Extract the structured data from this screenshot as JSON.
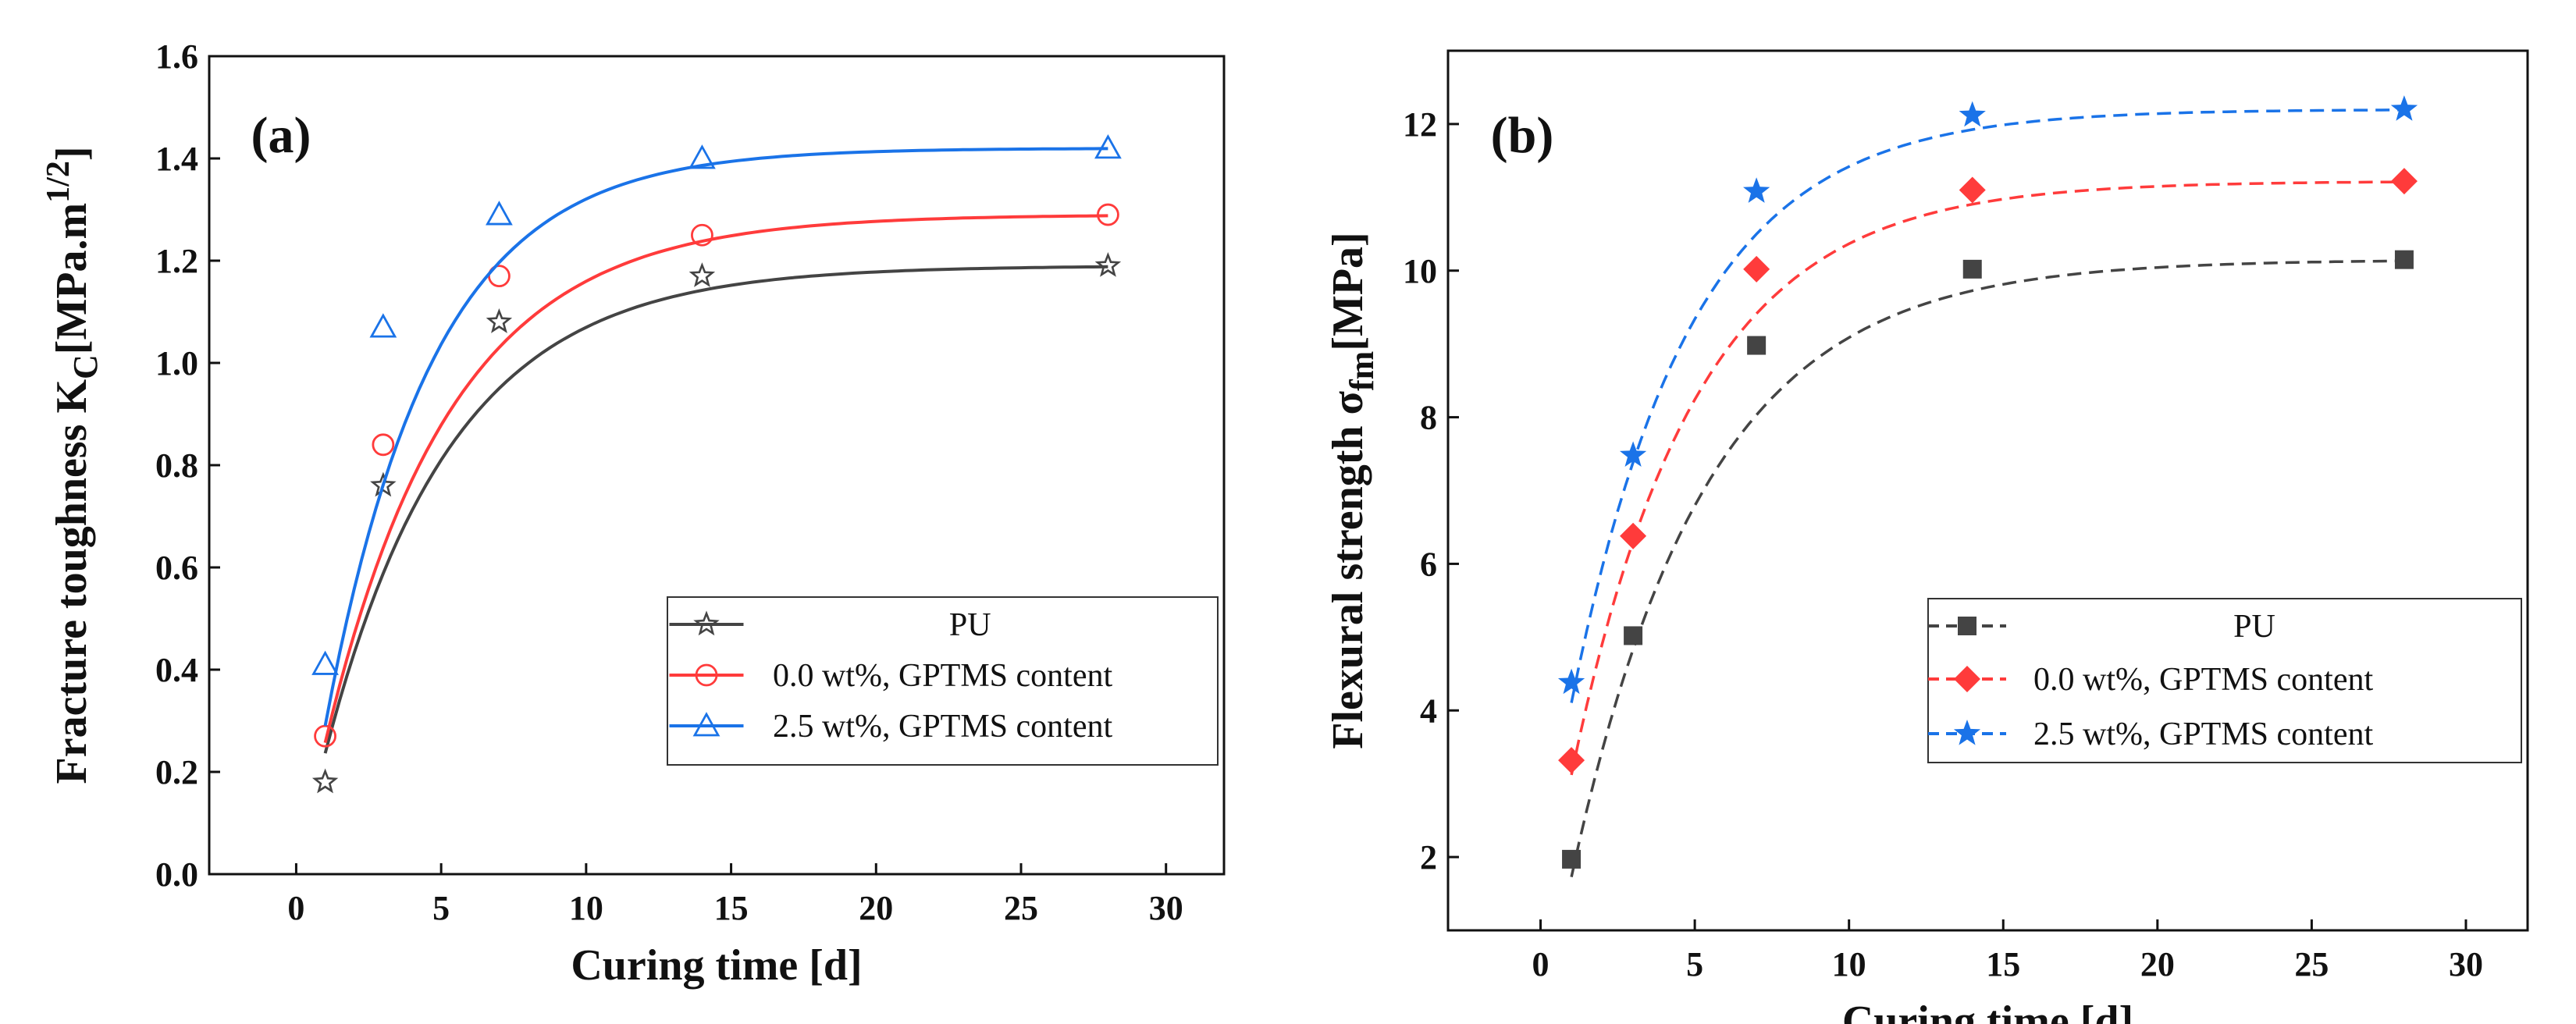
{
  "colors": {
    "black": "#444444",
    "red": "#ff3b3b",
    "blue": "#1a73e8",
    "axis": "#111111"
  },
  "chart_data": [
    {
      "type": "scatter",
      "panel_label": "(a)",
      "xlabel": "Curing time [d]",
      "ylabel_main": "Fracture toughness K",
      "ylabel_sub": "C",
      "ylabel_rest": "[MPa.m",
      "ylabel_sup": "1/2",
      "ylabel_end": "]",
      "xlim": [
        -3,
        32
      ],
      "ylim": [
        0,
        1.6
      ],
      "xticks": [
        0,
        5,
        10,
        15,
        20,
        25,
        30
      ],
      "yticks": [
        0.0,
        0.2,
        0.4,
        0.6,
        0.8,
        1.0,
        1.2,
        1.4,
        1.6
      ],
      "ytick_labels": [
        "0.0",
        "0.2",
        "0.4",
        "0.6",
        "0.8",
        "1.0",
        "1.2",
        "1.4",
        "1.6"
      ],
      "grid": false,
      "legend_position": "lower-right",
      "fit_style": "solid",
      "series": [
        {
          "name": "PU",
          "marker": "star-open",
          "color": "#444444",
          "x": [
            1,
            3,
            7,
            14,
            28
          ],
          "y": [
            0.18,
            0.76,
            1.08,
            1.17,
            1.19
          ],
          "fit": {
            "a": 1.19,
            "b": 1.2,
            "k": 0.23
          }
        },
        {
          "name": "0.0 wt%, GPTMS content",
          "marker": "circle-open",
          "color": "#ff3b3b",
          "x": [
            1,
            3,
            7,
            14,
            28
          ],
          "y": [
            0.27,
            0.84,
            1.17,
            1.25,
            1.29
          ],
          "fit": {
            "a": 1.29,
            "b": 1.3,
            "k": 0.23
          }
        },
        {
          "name": "2.5 wt%, GPTMS content",
          "marker": "triangle-open",
          "color": "#1a73e8",
          "x": [
            1,
            3,
            7,
            14,
            28
          ],
          "y": [
            0.41,
            1.07,
            1.29,
            1.4,
            1.42
          ],
          "fit": {
            "a": 1.42,
            "b": 1.48,
            "k": 0.27
          }
        }
      ]
    },
    {
      "type": "scatter",
      "panel_label": "(b)",
      "xlabel": "Curing time [d]",
      "ylabel_main": "Flexural strength σ",
      "ylabel_sub": "fm",
      "ylabel_rest": "[MPa]",
      "ylabel_sup": "",
      "ylabel_end": "",
      "xlim": [
        -3,
        32
      ],
      "ylim": [
        1,
        13
      ],
      "xticks": [
        0,
        5,
        10,
        15,
        20,
        25,
        30
      ],
      "yticks": [
        2,
        4,
        6,
        8,
        10,
        12
      ],
      "ytick_labels": [
        "2",
        "4",
        "6",
        "8",
        "10",
        "12"
      ],
      "grid": false,
      "legend_position": "lower-right",
      "fit_style": "dashed",
      "series": [
        {
          "name": "PU",
          "marker": "square-filled",
          "color": "#444444",
          "x": [
            1,
            3,
            7,
            14,
            28
          ],
          "y": [
            1.97,
            5.02,
            8.98,
            10.02,
            10.15
          ],
          "fit": {
            "a": 10.15,
            "b": 10.6,
            "k": 0.23
          }
        },
        {
          "name": "0.0 wt%, GPTMS content",
          "marker": "diamond-filled",
          "color": "#ff3b3b",
          "x": [
            1,
            3,
            7,
            14,
            28
          ],
          "y": [
            3.32,
            6.38,
            10.02,
            11.1,
            11.22
          ],
          "fit": {
            "a": 11.22,
            "b": 10.4,
            "k": 0.25
          }
        },
        {
          "name": "2.5 wt%, GPTMS content",
          "marker": "star-filled",
          "color": "#1a73e8",
          "x": [
            1,
            3,
            7,
            14,
            28
          ],
          "y": [
            4.38,
            7.48,
            11.08,
            12.12,
            12.2
          ],
          "fit": {
            "a": 12.2,
            "b": 10.5,
            "k": 0.26
          }
        }
      ]
    }
  ]
}
